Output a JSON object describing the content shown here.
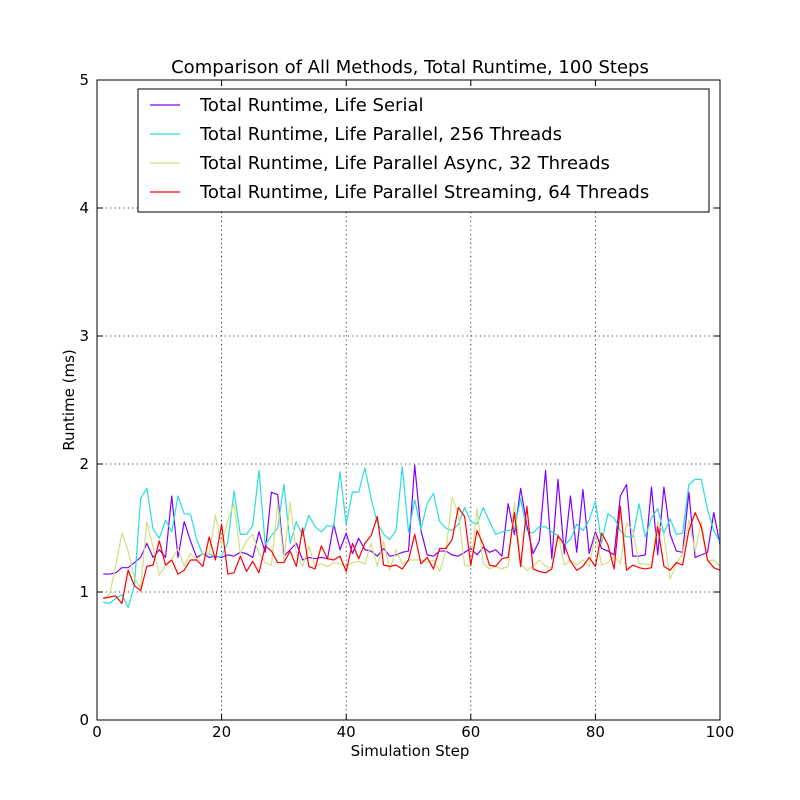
{
  "chart_data": {
    "type": "line",
    "title": "Comparison of All Methods, Total Runtime, 100 Steps",
    "xlabel": "Simulation Step",
    "ylabel": "Runtime (ms)",
    "xlim": [
      0,
      100
    ],
    "ylim": [
      0,
      5
    ],
    "xticks": [
      "0",
      "20",
      "40",
      "60",
      "80",
      "100"
    ],
    "yticks": [
      "0",
      "1",
      "2",
      "3",
      "4",
      "5"
    ],
    "grid": true,
    "legend_position": "top",
    "x": [
      1,
      2,
      3,
      4,
      5,
      6,
      7,
      8,
      9,
      10,
      11,
      12,
      13,
      14,
      15,
      16,
      17,
      18,
      19,
      20,
      21,
      22,
      23,
      24,
      25,
      26,
      27,
      28,
      29,
      30,
      31,
      32,
      33,
      34,
      35,
      36,
      37,
      38,
      39,
      40,
      41,
      42,
      43,
      44,
      45,
      46,
      47,
      48,
      49,
      50,
      51,
      52,
      53,
      54,
      55,
      56,
      57,
      58,
      59,
      60,
      61,
      62,
      63,
      64,
      65,
      66,
      67,
      68,
      69,
      70,
      71,
      72,
      73,
      74,
      75,
      76,
      77,
      78,
      79,
      80,
      81,
      82,
      83,
      84,
      85,
      86,
      87,
      88,
      89,
      90,
      91,
      92,
      93,
      94,
      95,
      96,
      97,
      98,
      99,
      100
    ],
    "series": [
      {
        "name": "Total Runtime, Life Serial",
        "color": "#8000ff",
        "values": [
          1.14,
          1.14,
          1.15,
          1.19,
          1.19,
          1.23,
          1.27,
          1.38,
          1.27,
          1.33,
          1.27,
          1.75,
          1.27,
          1.55,
          1.4,
          1.27,
          1.3,
          1.27,
          1.28,
          1.27,
          1.29,
          1.28,
          1.31,
          1.3,
          1.27,
          1.47,
          1.31,
          1.78,
          1.76,
          1.28,
          1.33,
          1.38,
          1.25,
          1.27,
          1.26,
          1.27,
          1.26,
          1.53,
          1.33,
          1.46,
          1.3,
          1.42,
          1.33,
          1.32,
          1.28,
          1.34,
          1.28,
          1.29,
          1.31,
          1.32,
          1.99,
          1.48,
          1.29,
          1.28,
          1.32,
          1.32,
          1.29,
          1.28,
          1.31,
          1.34,
          1.29,
          1.35,
          1.31,
          1.33,
          1.28,
          1.69,
          1.45,
          1.81,
          1.52,
          1.3,
          1.4,
          1.95,
          1.26,
          1.88,
          1.3,
          1.75,
          1.31,
          1.8,
          1.3,
          1.47,
          1.34,
          1.32,
          1.29,
          1.75,
          1.84,
          1.28,
          1.28,
          1.29,
          1.82,
          1.29,
          1.82,
          1.45,
          1.32,
          1.31,
          1.78,
          1.27,
          1.29,
          1.31,
          1.62,
          1.37
        ]
      },
      {
        "name": "Total Runtime, Life Parallel, 256 Threads",
        "color": "#2adddd",
        "values": [
          0.92,
          0.91,
          0.95,
          0.98,
          0.88,
          1.05,
          1.73,
          1.81,
          1.49,
          1.42,
          1.56,
          1.47,
          1.75,
          1.61,
          1.61,
          1.41,
          1.29,
          1.3,
          1.27,
          1.28,
          1.39,
          1.79,
          1.45,
          1.45,
          1.52,
          1.95,
          1.37,
          1.44,
          1.5,
          1.84,
          1.38,
          1.55,
          1.44,
          1.6,
          1.51,
          1.47,
          1.52,
          1.51,
          1.94,
          1.53,
          1.78,
          1.78,
          1.97,
          1.73,
          1.54,
          1.45,
          1.41,
          1.48,
          1.98,
          1.47,
          1.72,
          1.49,
          1.69,
          1.77,
          1.55,
          1.5,
          1.48,
          1.53,
          1.66,
          1.55,
          1.53,
          1.66,
          1.55,
          1.45,
          1.47,
          1.48,
          1.49,
          1.73,
          1.48,
          1.46,
          1.51,
          1.51,
          1.47,
          1.44,
          1.37,
          1.41,
          1.53,
          1.48,
          1.56,
          1.71,
          1.38,
          1.61,
          1.58,
          1.48,
          1.43,
          1.43,
          1.69,
          1.43,
          1.58,
          1.65,
          1.46,
          1.57,
          1.45,
          1.46,
          1.84,
          1.88,
          1.88,
          1.64,
          1.48,
          1.39
        ]
      },
      {
        "name": "Total Runtime, Life Parallel Async, 32 Threads",
        "color": "#d4dd80",
        "values": [
          0.95,
          0.98,
          1.2,
          1.46,
          1.32,
          1.11,
          1.03,
          1.55,
          1.35,
          1.13,
          1.21,
          1.25,
          1.34,
          1.2,
          1.3,
          1.25,
          1.3,
          1.3,
          1.6,
          1.37,
          1.56,
          1.69,
          1.3,
          1.4,
          1.45,
          1.3,
          1.23,
          1.21,
          1.69,
          1.25,
          1.7,
          1.3,
          1.2,
          1.36,
          1.2,
          1.22,
          1.2,
          1.23,
          1.22,
          1.2,
          1.23,
          1.24,
          1.22,
          1.38,
          1.2,
          1.4,
          1.17,
          1.33,
          1.22,
          1.25,
          1.25,
          1.25,
          1.23,
          1.25,
          1.16,
          1.32,
          1.74,
          1.61,
          1.21,
          1.2,
          1.65,
          1.22,
          1.18,
          1.2,
          1.18,
          1.2,
          1.7,
          1.22,
          1.17,
          1.2,
          1.25,
          1.2,
          1.19,
          1.45,
          1.21,
          1.25,
          1.21,
          1.25,
          1.2,
          1.45,
          1.21,
          1.23,
          1.28,
          1.22,
          1.54,
          1.48,
          1.22,
          1.22,
          1.21,
          1.55,
          1.45,
          1.1,
          1.22,
          1.3,
          1.56,
          1.32,
          1.55,
          1.24,
          1.25,
          1.2
        ]
      },
      {
        "name": "Total Runtime, Life Parallel Streaming, 64 Threads",
        "color": "#ff0000",
        "values": [
          0.95,
          0.96,
          0.97,
          0.91,
          1.17,
          1.05,
          1.01,
          1.2,
          1.21,
          1.4,
          1.21,
          1.25,
          1.14,
          1.17,
          1.25,
          1.25,
          1.2,
          1.43,
          1.25,
          1.53,
          1.14,
          1.15,
          1.28,
          1.16,
          1.24,
          1.15,
          1.36,
          1.32,
          1.23,
          1.23,
          1.32,
          1.2,
          1.5,
          1.2,
          1.18,
          1.36,
          1.26,
          1.25,
          1.28,
          1.16,
          1.38,
          1.26,
          1.38,
          1.44,
          1.59,
          1.21,
          1.2,
          1.21,
          1.18,
          1.25,
          1.45,
          1.22,
          1.27,
          1.18,
          1.34,
          1.34,
          1.41,
          1.66,
          1.59,
          1.21,
          1.48,
          1.37,
          1.21,
          1.2,
          1.26,
          1.27,
          1.62,
          1.2,
          1.67,
          1.18,
          1.16,
          1.15,
          1.18,
          1.44,
          1.37,
          1.24,
          1.17,
          1.2,
          1.27,
          1.2,
          1.46,
          1.37,
          1.18,
          1.67,
          1.17,
          1.21,
          1.19,
          1.18,
          1.19,
          1.51,
          1.2,
          1.17,
          1.23,
          1.21,
          1.48,
          1.62,
          1.51,
          1.25,
          1.19,
          1.17
        ]
      }
    ]
  }
}
